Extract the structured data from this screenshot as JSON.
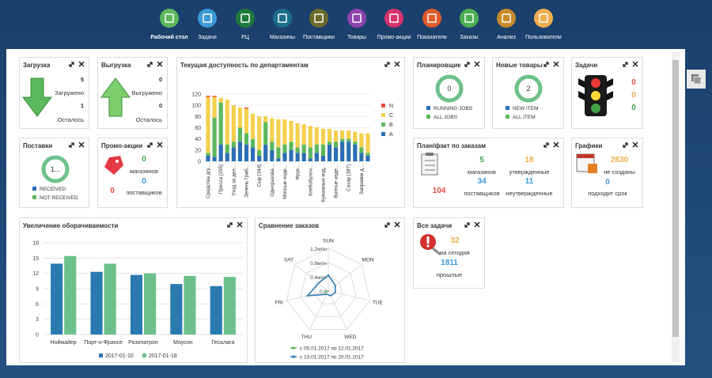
{
  "nav": {
    "items": [
      {
        "label": "Рабочий стол",
        "color": "#5cb85c"
      },
      {
        "label": "Задачи",
        "color": "#3a9ad9"
      },
      {
        "label": "РЦ",
        "color": "#1e7a3a"
      },
      {
        "label": "Магазины",
        "color": "#1a6e8a"
      },
      {
        "label": "Поставщики",
        "color": "#6b6b2a"
      },
      {
        "label": "Товары",
        "color": "#8e44ad"
      },
      {
        "label": "Промо-акции",
        "color": "#d6336c"
      },
      {
        "label": "Показатели",
        "color": "#e05a2b"
      },
      {
        "label": "Заказы",
        "color": "#4caf50"
      },
      {
        "label": "Анализ",
        "color": "#c98a2a"
      },
      {
        "label": "Пользователи",
        "color": "#f0ad4e"
      }
    ]
  },
  "load": {
    "title": "Загрузка",
    "loaded": 5,
    "loaded_label": "Загружено",
    "left": 1,
    "left_label": "Осталось"
  },
  "unload": {
    "title": "Выгрузка",
    "unloaded": 0,
    "unloaded_label": "Выгружено",
    "left": 0,
    "left_label": "Осталось"
  },
  "availability": {
    "title": "Текущая доступность по департаментам",
    "chart_data": {
      "type": "bar",
      "stacked": true,
      "categories": [
        "Средства д/у...",
        null,
        "Пресса [255]",
        null,
        "Уход за дел...",
        null,
        "Зелень Гриб...",
        null,
        "Сыр [344]",
        null,
        "Одноразова...",
        null,
        "Мясные изде...",
        null,
        "Фрук...",
        null,
        "Хлебобулоч...",
        null,
        "Бумажные изд...",
        null,
        "Ватные изде...",
        null,
        "Сахар [387]",
        null,
        "Заправки д...",
        null
      ],
      "series": [
        {
          "name": "N",
          "color": "#e74c3c",
          "values": [
            2,
            2,
            0,
            0,
            0,
            0,
            2,
            0,
            0,
            0,
            0,
            0,
            0,
            0,
            0,
            0,
            0,
            0,
            0,
            0,
            0,
            0,
            0,
            0,
            0,
            0
          ]
        },
        {
          "name": "C",
          "color": "#f5d04c",
          "values": [
            100,
            37,
            8,
            80,
            65,
            36,
            44,
            45,
            60,
            10,
            42,
            50,
            45,
            37,
            43,
            36,
            38,
            31,
            28,
            23,
            20,
            15,
            15,
            18,
            25,
            35
          ]
        },
        {
          "name": "B",
          "color": "#5cb85c",
          "values": [
            5,
            70,
            75,
            15,
            10,
            25,
            20,
            15,
            10,
            40,
            15,
            20,
            15,
            15,
            10,
            15,
            20,
            15,
            20,
            5,
            10,
            5,
            5,
            5,
            10,
            5
          ]
        },
        {
          "name": "A",
          "color": "#2a6fb5",
          "values": [
            10,
            8,
            30,
            15,
            25,
            35,
            30,
            25,
            10,
            30,
            20,
            5,
            15,
            20,
            15,
            15,
            5,
            15,
            10,
            30,
            25,
            35,
            35,
            30,
            15,
            10
          ]
        }
      ],
      "ylim": [
        0,
        120
      ],
      "yticks": [
        0,
        20,
        40,
        60,
        80,
        100,
        120
      ]
    }
  },
  "scheduler": {
    "title": "Планировщик",
    "center": "0",
    "legend": [
      {
        "label": "RUNNING JOBS",
        "color": "#2a6fb5"
      },
      {
        "label": "ALL JOBS",
        "color": "#5cb85c"
      }
    ]
  },
  "new_goods": {
    "title": "Новые товары",
    "center": "2",
    "legend": [
      {
        "label": "NEW ITEM",
        "color": "#2a6fb5"
      },
      {
        "label": "ALL ITEM",
        "color": "#5cb85c"
      }
    ]
  },
  "tasks": {
    "title": "Задачи",
    "red": 0,
    "orange": 0,
    "green": 0
  },
  "deliveries": {
    "title": "Поставки",
    "center": "1...",
    "legend": [
      {
        "label": "RECEIVED",
        "color": "#2a6fb5"
      },
      {
        "label": "NOT RECEIVED",
        "color": "#5cb85c"
      }
    ]
  },
  "promo": {
    "title": "Промо-акции",
    "stores": 0,
    "stores_label": "магазинов",
    "suppliers": 0,
    "suppliers_label": "поставщиков",
    "total": 0
  },
  "plan_fact": {
    "title": "План/факт по заказам",
    "stores": 5,
    "stores_label": "магазинов",
    "approved": 18,
    "approved_label": "утвержденные",
    "total": 104,
    "suppliers": 34,
    "suppliers_label": "поставщиков",
    "unapproved": 11,
    "unapproved_label": "неутвержденные"
  },
  "schedules": {
    "title": "Графики",
    "not_created": 2830,
    "not_created_label": "не созданы",
    "due": 0,
    "due_label": "подходит срок"
  },
  "turnover": {
    "title": "Увеличение оборачиваемости",
    "chart_data": {
      "type": "bar",
      "categories": [
        "Ноймайер",
        "Порт-о-Франсе",
        "Рязопатрон",
        "Моусон",
        "Гесалага"
      ],
      "series": [
        {
          "name": "2017-01-10",
          "color": "#2a7ab0",
          "values": [
            13.9,
            12.3,
            11.7,
            9.9,
            9.5
          ]
        },
        {
          "name": "2017-01-18",
          "color": "#6cc18a",
          "values": [
            15.4,
            13.9,
            12.0,
            11.5,
            11.3
          ]
        }
      ],
      "ylim": [
        0,
        18
      ],
      "yticks": [
        0,
        3,
        6,
        9,
        12,
        15,
        18
      ],
      "grid": true
    }
  },
  "orders": {
    "title": "Сравнение заказов",
    "chart_data": {
      "type": "radar",
      "categories": [
        "SUN",
        "MON",
        "TUE",
        "WED",
        "THU",
        "FRI",
        "SAT"
      ],
      "series": [
        {
          "name": "с 05.01.2017 по 12.01.2017",
          "color": "#5cb85c",
          "values": [
            0,
            0,
            0,
            0,
            0,
            0.1,
            0
          ]
        },
        {
          "name": "с 13.01.2017 по 20.01.2017",
          "color": "#2a7ab0",
          "values": [
            0.45,
            0.25,
            0.2,
            0.15,
            0.1,
            0.6,
            0.35
          ]
        }
      ],
      "ylim": [
        0,
        1.2
      ],
      "yticks": [
        {
          "value": 0,
          "label": "0,0"
        },
        {
          "value": 0.4,
          "label": "0,4млн"
        },
        {
          "value": 0.8,
          "label": "0,8млн"
        },
        {
          "value": 1.2,
          "label": "1,2млн"
        }
      ]
    }
  },
  "all_tasks": {
    "title": "Все задачи",
    "today": 32,
    "today_label": "на сегодня",
    "past": 1811,
    "past_label": "прошлые"
  }
}
